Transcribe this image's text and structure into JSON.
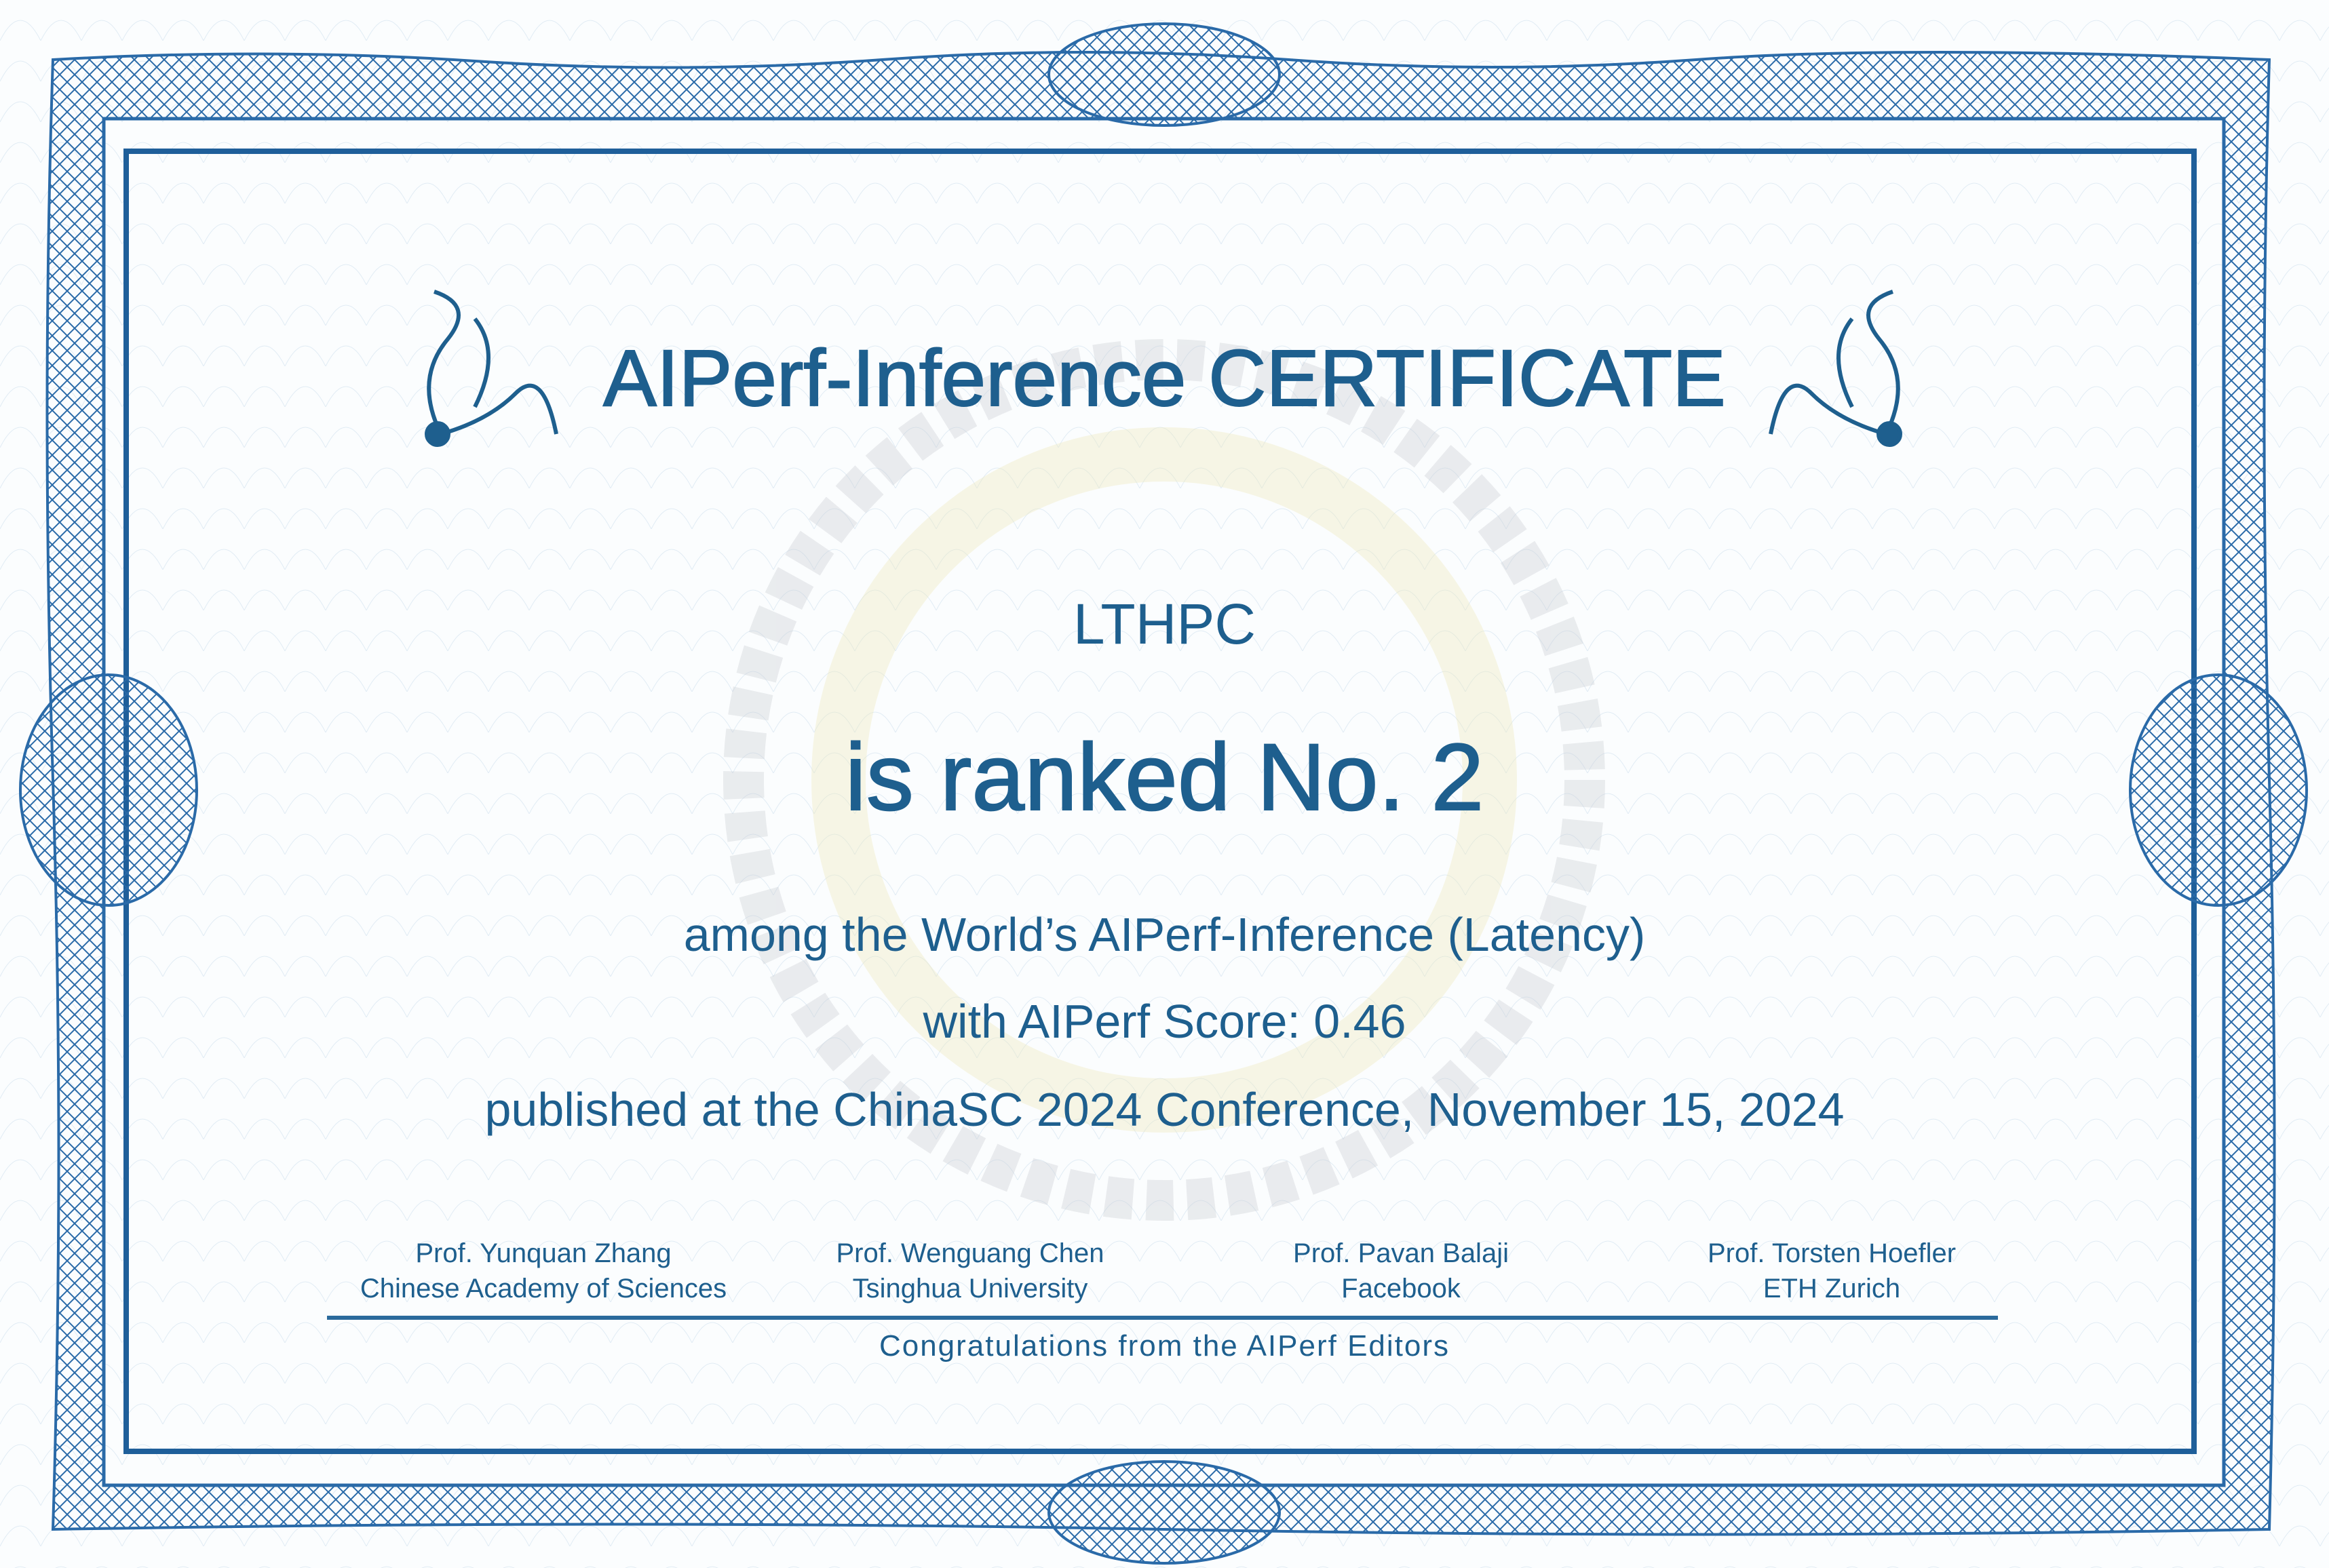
{
  "certificate": {
    "title": "AIPerf-Inference CERTIFICATE",
    "recipient": "LTHPC",
    "rank_text": "is ranked No. 2",
    "category_text": "among the World’s AIPerf-Inference (Latency)",
    "score_text": "with AIPerf Score: 0.46",
    "published_text": "published at the ChinaSC 2024 Conference, November 15, 2024",
    "signatories": [
      {
        "name": "Prof. Yunquan Zhang",
        "affiliation": "Chinese Academy of Sciences"
      },
      {
        "name": "Prof. Wenguang Chen",
        "affiliation": "Tsinghua University"
      },
      {
        "name": "Prof. Pavan Balaji",
        "affiliation": "Facebook"
      },
      {
        "name": "Prof. Torsten Hoefler",
        "affiliation": "ETH Zurich"
      }
    ],
    "footer": "Congratulations from the AIPerf Editors"
  },
  "colors": {
    "text": "#1e5f8e",
    "border": "#2a6aa8",
    "paper": "#fbfdfe"
  },
  "icons": [
    "guilloche-border",
    "floral-ornament-left",
    "floral-ornament-right",
    "rosette-medallion"
  ]
}
